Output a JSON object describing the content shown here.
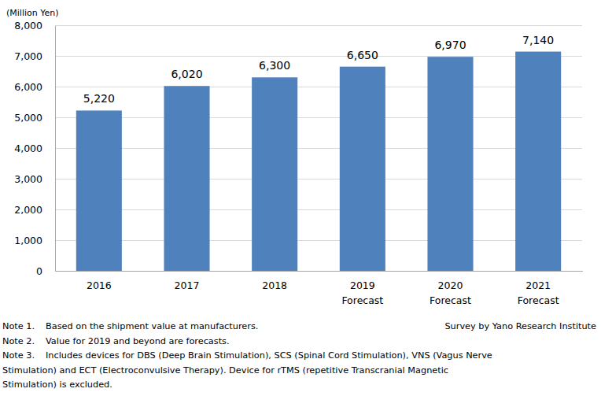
{
  "chart_data": {
    "type": "bar",
    "y_label": "(Million Yen)",
    "categories": [
      "2016",
      "2017",
      "2018",
      "2019\nForecast",
      "2020\nForecast",
      "2021\nForecast"
    ],
    "values": [
      5220,
      6020,
      6300,
      6650,
      6970,
      7140
    ],
    "value_labels": [
      "5,220",
      "6,020",
      "6,300",
      "6,650",
      "6,970",
      "7,140"
    ],
    "data_labels": true,
    "color": "#4f81bd",
    "ylim": [
      0,
      8000
    ],
    "yticks": [
      0,
      {
        "value": 1000,
        "label": "1,000"
      },
      {
        "value": 2000,
        "label": "2,000"
      },
      {
        "value": 3000,
        "label": "3,000"
      },
      {
        "value": 4000,
        "label": "4,000"
      },
      {
        "value": 5000,
        "label": "5,000"
      },
      {
        "value": 6000,
        "label": "6,000"
      },
      {
        "value": 7000,
        "label": "7,000"
      },
      {
        "value": 8000,
        "label": "8,000"
      }
    ],
    "grid": true,
    "source": "Survey by Yano Research Institute",
    "notes": [
      {
        "label": "Note 1.",
        "lines": [
          "Based on the shipment value at manufacturers."
        ]
      },
      {
        "label": "Note 2.",
        "lines": [
          "Value for 2019 and beyond are forecasts."
        ]
      },
      {
        "label": "Note 3.",
        "lines": [
          "Includes devices for DBS (Deep Brain Stimulation), SCS (Spinal Cord Stimulation), VNS (Vagus Nerve",
          "Stimulation)  and ECT (Electroconvulsive Therapy). Device for rTMS (repetitive Transcranial Magnetic",
          "Stimulation) is excluded."
        ]
      }
    ]
  }
}
